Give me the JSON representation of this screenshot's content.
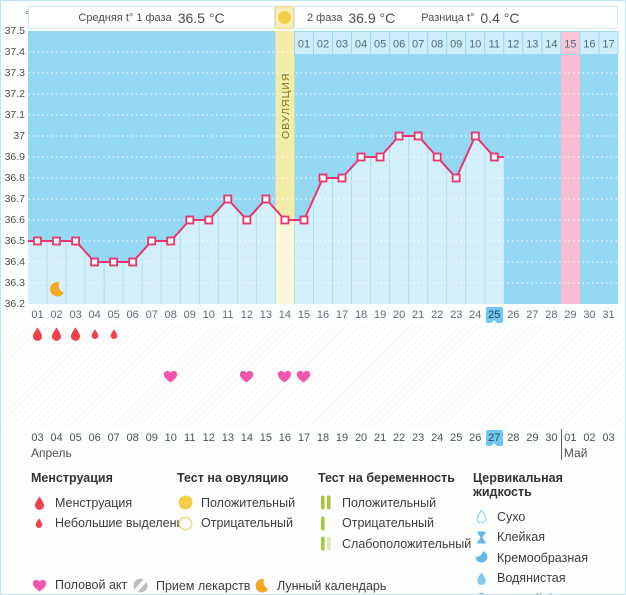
{
  "header": {
    "unit": "°C",
    "phase1_label": "Средняя t° 1 фаза",
    "phase1_value": "36.5 °C",
    "phase2_label": "2 фаза",
    "phase2_value": "36.9 °C",
    "diff_label": "Разница t°",
    "diff_value": "0.4 °C",
    "ovulation_column_label": "ОВУЛЯЦИЯ"
  },
  "chart_data": {
    "type": "line",
    "ylabel": "°C",
    "ylim": [
      36.2,
      37.5
    ],
    "yticks": [
      "37.5",
      "37.4",
      "37.3",
      "37.2",
      "37.1",
      "37",
      "36.9",
      "36.8",
      "36.7",
      "36.6",
      "36.5",
      "36.4",
      "36.3",
      "36.2"
    ],
    "x_cycle_days": [
      "01",
      "02",
      "03",
      "04",
      "05",
      "06",
      "07",
      "08",
      "09",
      "10",
      "11",
      "12",
      "13",
      "14",
      "15",
      "16",
      "17",
      "18",
      "19",
      "20",
      "21",
      "22",
      "23",
      "24",
      "25",
      "26",
      "27",
      "28",
      "29",
      "30",
      "31"
    ],
    "temperatures": [
      36.5,
      36.5,
      36.5,
      36.4,
      36.4,
      36.4,
      36.5,
      36.5,
      36.6,
      36.6,
      36.7,
      36.6,
      36.7,
      36.6,
      36.6,
      36.8,
      36.8,
      36.9,
      36.9,
      37.0,
      37.0,
      36.9,
      36.8,
      37.0,
      36.9,
      null,
      null,
      null,
      null,
      null,
      null
    ],
    "ovulation_day": 14,
    "pink_highlight_day": 29,
    "dpo_labels": [
      "01",
      "02",
      "03",
      "04",
      "05",
      "06",
      "07",
      "08",
      "09",
      "10",
      "11",
      "12",
      "13",
      "14",
      "15",
      "16",
      "17"
    ],
    "dpo_highlighted_label": "15",
    "selected_cycle_day_index": 24,
    "moon_marker_day": 2,
    "menstruation_days": [
      {
        "day": 1,
        "intensity": "heavy"
      },
      {
        "day": 2,
        "intensity": "heavy"
      },
      {
        "day": 3,
        "intensity": "heavy"
      },
      {
        "day": 4,
        "intensity": "light"
      },
      {
        "day": 5,
        "intensity": "light"
      }
    ],
    "intercourse_days": [
      8,
      12,
      14,
      15
    ],
    "dates": [
      "03",
      "04",
      "05",
      "06",
      "07",
      "08",
      "09",
      "10",
      "11",
      "12",
      "13",
      "14",
      "15",
      "16",
      "17",
      "18",
      "19",
      "20",
      "21",
      "22",
      "23",
      "24",
      "25",
      "26",
      "27",
      "28",
      "29",
      "30",
      "01",
      "02",
      "03"
    ],
    "weekend_date_indices": [
      4,
      5,
      11,
      12,
      18,
      19,
      25,
      26
    ],
    "selected_date_index": 24,
    "april_count": 28,
    "months": [
      "Апрель",
      "Май"
    ],
    "grid": true,
    "legend_position": "bottom"
  },
  "colors": {
    "chart_bg": "#95d8f3",
    "under_curve_fill": "rgba(255,255,255,0.58)",
    "ovulation_yellow": "#f6ecaa",
    "period_pink": "#f8bdd0",
    "accent_line": "#e9356b",
    "selected_blue": "#6dc7ee",
    "weekend_red": "#f0558b",
    "menstruation_red": "#f2404e",
    "heart_pink": "#f356ab",
    "test_yellow": "#f7ce4a",
    "test_green": "#a6c93c",
    "test_green_pale": "#dbe8b4",
    "fluid_blue": "#66b5e8",
    "fluid_blue_light": "#85c8ef",
    "moon_orange": "#f5a623",
    "pill_gray": "#bdbdbd"
  },
  "legend": {
    "sections": [
      {
        "title": "Менструация",
        "items": [
          {
            "icon": "drop-big",
            "label": "Менструация"
          },
          {
            "icon": "drop-small",
            "label": "Небольшие выделения"
          }
        ]
      },
      {
        "title": "Тест на овуляцию",
        "items": [
          {
            "icon": "circle-filled",
            "label": "Положительный"
          },
          {
            "icon": "circle-outline",
            "label": "Отрицательный"
          }
        ]
      },
      {
        "title": "Тест на беременность",
        "items": [
          {
            "icon": "bars-two",
            "label": "Положительный"
          },
          {
            "icon": "bar-one",
            "label": "Отрицательный"
          },
          {
            "icon": "bars-weak",
            "label": "Слабоположительный"
          }
        ]
      },
      {
        "title": "Цервикальная жидкость",
        "items": [
          {
            "icon": "drop-outline",
            "label": "Сухо"
          },
          {
            "icon": "sticky",
            "label": "Клейкая"
          },
          {
            "icon": "creamy",
            "label": "Кремообразная"
          },
          {
            "icon": "drop-filled",
            "label": "Водянистая"
          },
          {
            "icon": "eggwhite",
            "label": "Яичный белок"
          }
        ]
      }
    ],
    "extra_items": [
      {
        "icon": "heart",
        "label": "Половой акт"
      },
      {
        "icon": "pill",
        "label": "Прием лекарств"
      },
      {
        "icon": "moon",
        "label": "Лунный календарь"
      }
    ]
  }
}
